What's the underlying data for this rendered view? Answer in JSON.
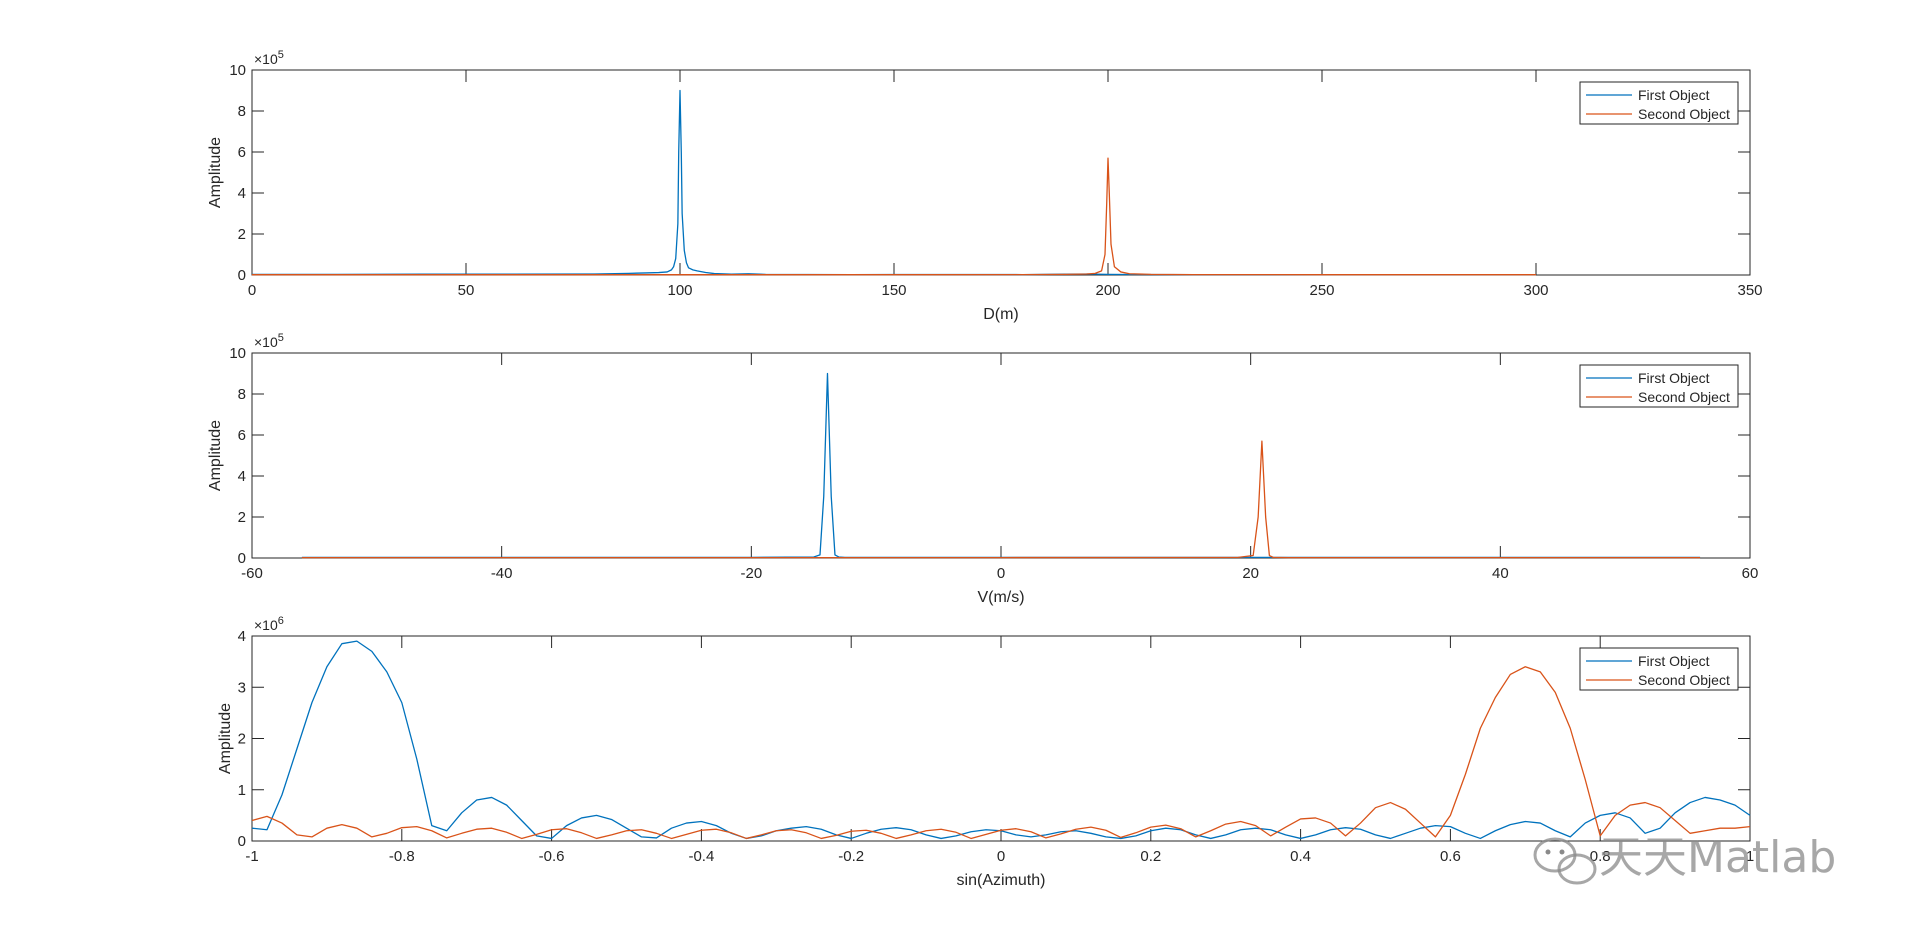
{
  "chart_data": [
    {
      "type": "line",
      "xlabel": "D(m)",
      "ylabel": "Amplitude",
      "xlim": [
        0,
        350
      ],
      "ylim": [
        0,
        1000000
      ],
      "xticks": [
        0,
        50,
        100,
        150,
        200,
        250,
        300,
        350
      ],
      "yticks": [
        0,
        2,
        4,
        6,
        8,
        10
      ],
      "y_exponent_label": "×10^5",
      "legend_position": "top-right",
      "series": [
        {
          "name": "First Object",
          "color": "#0072BD",
          "x": [
            0,
            20,
            40,
            60,
            80,
            88,
            92,
            95,
            97,
            98,
            98.5,
            99,
            99.5,
            99.7,
            100,
            100.3,
            100.5,
            101,
            101.5,
            102,
            103,
            104,
            106,
            108,
            112,
            116,
            120,
            140,
            160,
            180,
            190,
            195,
            200,
            205,
            220,
            250,
            280,
            300
          ],
          "y": [
            3000,
            3000,
            4000,
            4000,
            5000,
            8000,
            10000,
            12000,
            15000,
            25000,
            40000,
            80000,
            250000,
            600000,
            900000,
            600000,
            300000,
            120000,
            60000,
            35000,
            25000,
            20000,
            12000,
            7000,
            4000,
            6000,
            3000,
            2000,
            2500,
            2000,
            4000,
            5000,
            3000,
            2500,
            2000,
            2000,
            2000,
            2000
          ]
        },
        {
          "name": "Second Object",
          "color": "#D95319",
          "x": [
            0,
            50,
            100,
            150,
            180,
            190,
            195,
            197,
            198.5,
            199.3,
            199.7,
            200,
            200.3,
            200.7,
            201.5,
            203,
            205,
            210,
            220,
            250,
            300
          ],
          "y": [
            1500,
            1500,
            1500,
            1500,
            2000,
            3000,
            5000,
            8000,
            20000,
            100000,
            350000,
            570000,
            400000,
            150000,
            40000,
            15000,
            6000,
            3000,
            2000,
            1500,
            1500
          ]
        }
      ]
    },
    {
      "type": "line",
      "xlabel": "V(m/s)",
      "ylabel": "Amplitude",
      "xlim": [
        -60,
        60
      ],
      "ylim": [
        0,
        1000000
      ],
      "xticks": [
        -60,
        -40,
        -20,
        0,
        20,
        40,
        60
      ],
      "yticks": [
        0,
        2,
        4,
        6,
        8,
        10
      ],
      "y_exponent_label": "×10^5",
      "legend_position": "top-right",
      "series": [
        {
          "name": "First Object",
          "color": "#0072BD",
          "x": [
            -56,
            -40,
            -20,
            -15,
            -14.5,
            -14.2,
            -13.9,
            -13.6,
            -13.3,
            -13,
            -12.5,
            -10,
            0,
            20,
            40,
            56
          ],
          "y": [
            3000,
            3000,
            3000,
            5000,
            15000,
            300000,
            900000,
            300000,
            15000,
            5000,
            3000,
            3000,
            3000,
            3000,
            3000,
            3000
          ]
        },
        {
          "name": "Second Object",
          "color": "#D95319",
          "x": [
            -56,
            -40,
            -20,
            0,
            19,
            20.2,
            20.6,
            20.9,
            21.2,
            21.5,
            21.8,
            23,
            40,
            56
          ],
          "y": [
            2000,
            2000,
            2000,
            2000,
            3000,
            12000,
            200000,
            570000,
            200000,
            12000,
            3000,
            2000,
            2000,
            2000
          ]
        }
      ]
    },
    {
      "type": "line",
      "xlabel": "sin(Azimuth)",
      "ylabel": "Amplitude",
      "xlim": [
        -1,
        1
      ],
      "ylim": [
        0,
        4000000
      ],
      "xticks": [
        -1,
        -0.8,
        -0.6,
        -0.4,
        -0.2,
        0,
        0.2,
        0.4,
        0.6,
        0.8,
        1
      ],
      "yticks": [
        0,
        1,
        2,
        3,
        4
      ],
      "y_exponent_label": "×10^6",
      "legend_position": "top-right",
      "series": [
        {
          "name": "First Object",
          "color": "#0072BD",
          "x": [
            -1,
            -0.98,
            -0.96,
            -0.94,
            -0.92,
            -0.9,
            -0.88,
            -0.86,
            -0.84,
            -0.82,
            -0.8,
            -0.78,
            -0.76,
            -0.74,
            -0.72,
            -0.7,
            -0.68,
            -0.66,
            -0.64,
            -0.62,
            -0.6,
            -0.58,
            -0.56,
            -0.54,
            -0.52,
            -0.5,
            -0.48,
            -0.46,
            -0.44,
            -0.42,
            -0.4,
            -0.38,
            -0.36,
            -0.34,
            -0.32,
            -0.3,
            -0.28,
            -0.26,
            -0.24,
            -0.22,
            -0.2,
            -0.18,
            -0.16,
            -0.14,
            -0.12,
            -0.1,
            -0.08,
            -0.06,
            -0.04,
            -0.02,
            0,
            0.02,
            0.04,
            0.06,
            0.08,
            0.1,
            0.12,
            0.14,
            0.16,
            0.18,
            0.2,
            0.22,
            0.24,
            0.26,
            0.28,
            0.3,
            0.32,
            0.34,
            0.36,
            0.38,
            0.4,
            0.42,
            0.44,
            0.46,
            0.48,
            0.5,
            0.52,
            0.54,
            0.56,
            0.58,
            0.6,
            0.62,
            0.64,
            0.66,
            0.68,
            0.7,
            0.72,
            0.74,
            0.76,
            0.78,
            0.8,
            0.82,
            0.84,
            0.86,
            0.88,
            0.9,
            0.92,
            0.94,
            0.96,
            0.98,
            1
          ],
          "y": [
            250000,
            220000,
            900000,
            1800000,
            2700000,
            3400000,
            3850000,
            3900000,
            3700000,
            3300000,
            2700000,
            1600000,
            300000,
            200000,
            550000,
            800000,
            850000,
            700000,
            400000,
            100000,
            50000,
            300000,
            450000,
            500000,
            420000,
            250000,
            80000,
            60000,
            250000,
            350000,
            380000,
            300000,
            150000,
            50000,
            100000,
            200000,
            250000,
            280000,
            230000,
            120000,
            50000,
            150000,
            230000,
            260000,
            220000,
            120000,
            50000,
            100000,
            180000,
            220000,
            200000,
            120000,
            80000,
            120000,
            180000,
            200000,
            150000,
            80000,
            50000,
            100000,
            200000,
            250000,
            220000,
            120000,
            50000,
            120000,
            220000,
            250000,
            220000,
            120000,
            50000,
            120000,
            220000,
            260000,
            230000,
            120000,
            50000,
            150000,
            250000,
            300000,
            280000,
            150000,
            50000,
            200000,
            320000,
            380000,
            350000,
            200000,
            80000,
            350000,
            500000,
            550000,
            450000,
            150000,
            250000,
            550000,
            750000,
            850000,
            800000,
            700000,
            500000
          ]
        },
        {
          "name": "Second Object",
          "color": "#D95319",
          "x": [
            -1,
            -0.98,
            -0.96,
            -0.94,
            -0.92,
            -0.9,
            -0.88,
            -0.86,
            -0.84,
            -0.82,
            -0.8,
            -0.78,
            -0.76,
            -0.74,
            -0.72,
            -0.7,
            -0.68,
            -0.66,
            -0.64,
            -0.62,
            -0.6,
            -0.58,
            -0.56,
            -0.54,
            -0.52,
            -0.5,
            -0.48,
            -0.46,
            -0.44,
            -0.42,
            -0.4,
            -0.38,
            -0.36,
            -0.34,
            -0.32,
            -0.3,
            -0.28,
            -0.26,
            -0.24,
            -0.22,
            -0.2,
            -0.18,
            -0.16,
            -0.14,
            -0.12,
            -0.1,
            -0.08,
            -0.06,
            -0.04,
            -0.02,
            0,
            0.02,
            0.04,
            0.06,
            0.08,
            0.1,
            0.12,
            0.14,
            0.16,
            0.18,
            0.2,
            0.22,
            0.24,
            0.26,
            0.28,
            0.3,
            0.32,
            0.34,
            0.36,
            0.38,
            0.4,
            0.42,
            0.44,
            0.46,
            0.48,
            0.5,
            0.52,
            0.54,
            0.56,
            0.58,
            0.6,
            0.62,
            0.64,
            0.66,
            0.68,
            0.7,
            0.72,
            0.74,
            0.76,
            0.78,
            0.8,
            0.82,
            0.84,
            0.86,
            0.88,
            0.9,
            0.92,
            0.94,
            0.96,
            0.98,
            1
          ],
          "y": [
            400000,
            480000,
            350000,
            120000,
            80000,
            250000,
            320000,
            250000,
            80000,
            150000,
            260000,
            280000,
            200000,
            60000,
            150000,
            230000,
            250000,
            170000,
            50000,
            130000,
            220000,
            240000,
            160000,
            50000,
            120000,
            200000,
            220000,
            150000,
            50000,
            130000,
            210000,
            230000,
            160000,
            50000,
            120000,
            200000,
            220000,
            160000,
            50000,
            110000,
            190000,
            210000,
            150000,
            50000,
            120000,
            200000,
            230000,
            170000,
            50000,
            130000,
            210000,
            240000,
            180000,
            60000,
            140000,
            230000,
            270000,
            210000,
            70000,
            160000,
            270000,
            310000,
            240000,
            80000,
            200000,
            330000,
            380000,
            300000,
            100000,
            270000,
            430000,
            450000,
            350000,
            100000,
            350000,
            650000,
            750000,
            620000,
            350000,
            80000,
            500000,
            1300000,
            2200000,
            2800000,
            3250000,
            3400000,
            3300000,
            2900000,
            2200000,
            1200000,
            100000,
            500000,
            700000,
            750000,
            650000,
            400000,
            150000,
            200000,
            250000,
            250000,
            280000
          ]
        }
      ]
    }
  ],
  "watermark": {
    "text": "天天Matlab",
    "icon": "wechat-icon"
  }
}
